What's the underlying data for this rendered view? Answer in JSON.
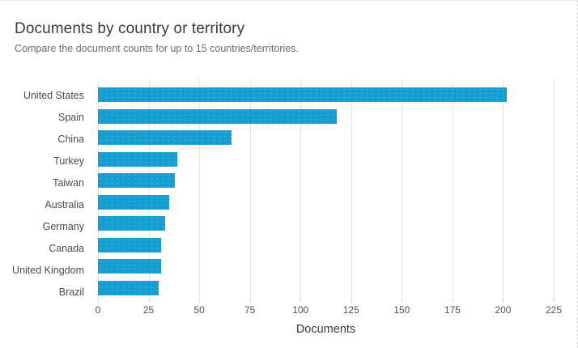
{
  "card": {
    "title": "Documents by country or territory",
    "subtitle": "Compare the document counts for up to 15 countries/territories."
  },
  "chart_data": {
    "type": "bar",
    "orientation": "horizontal",
    "title": "Documents by country or territory",
    "subtitle": "Compare the document counts for up to 15 countries/territories.",
    "categories": [
      "United States",
      "Spain",
      "China",
      "Turkey",
      "Taiwan",
      "Australia",
      "Germany",
      "Canada",
      "United Kingdom",
      "Brazil"
    ],
    "values": [
      202,
      118,
      66,
      39,
      38,
      35,
      33,
      31,
      31,
      30
    ],
    "xlabel": "Documents",
    "ylabel": "",
    "xticks": [
      0,
      25,
      50,
      75,
      100,
      125,
      150,
      175,
      200,
      225
    ],
    "xlim": [
      0,
      225
    ],
    "grid": true,
    "legend": false,
    "bar_color": "#149ed2",
    "gridline_color": "#e3e3e3"
  }
}
